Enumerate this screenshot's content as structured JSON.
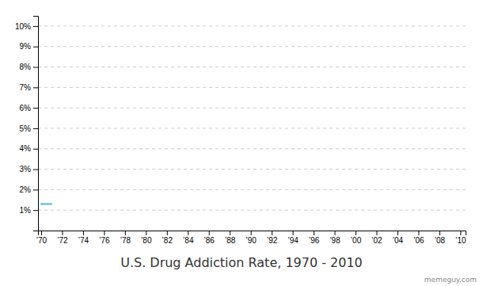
{
  "chart_data": {
    "type": "line",
    "title": "U.S. Drug Addiction Rate, 1970 - 2010",
    "x": [
      1970,
      1971
    ],
    "values": [
      0.013,
      0.013
    ],
    "color": "#4db8e8",
    "xlim": [
      1969.7,
      2010.5
    ],
    "xticks": [
      {
        "value": 1970,
        "label": "’70"
      },
      {
        "value": 1972,
        "label": "’72"
      },
      {
        "value": 1974,
        "label": "’74"
      },
      {
        "value": 1976,
        "label": "’76"
      },
      {
        "value": 1978,
        "label": "’78"
      },
      {
        "value": 1980,
        "label": "’80"
      },
      {
        "value": 1982,
        "label": "’82"
      },
      {
        "value": 1984,
        "label": "’84"
      },
      {
        "value": 1986,
        "label": "’86"
      },
      {
        "value": 1988,
        "label": "’88"
      },
      {
        "value": 1990,
        "label": "’90"
      },
      {
        "value": 1992,
        "label": "’92"
      },
      {
        "value": 1994,
        "label": "’94"
      },
      {
        "value": 1996,
        "label": "’96"
      },
      {
        "value": 1998,
        "label": "’98"
      },
      {
        "value": 2000,
        "label": "’00"
      },
      {
        "value": 2002,
        "label": "’02"
      },
      {
        "value": 2004,
        "label": "’04"
      },
      {
        "value": 2006,
        "label": "’06"
      },
      {
        "value": 2008,
        "label": "’08"
      },
      {
        "value": 2010,
        "label": "’10"
      }
    ],
    "ylim": [
      0.0,
      0.105
    ],
    "yticks": [
      {
        "value": 0.01,
        "label": "1%"
      },
      {
        "value": 0.02,
        "label": "2%"
      },
      {
        "value": 0.03,
        "label": "3%"
      },
      {
        "value": 0.04,
        "label": "4%"
      },
      {
        "value": 0.05,
        "label": "5%"
      },
      {
        "value": 0.06,
        "label": "6%"
      },
      {
        "value": 0.07,
        "label": "7%"
      },
      {
        "value": 0.08,
        "label": "8%"
      },
      {
        "value": 0.09,
        "label": "9%"
      },
      {
        "value": 0.1,
        "label": "10%"
      }
    ],
    "grid": true,
    "annotations": [
      "memeguy.com"
    ]
  }
}
